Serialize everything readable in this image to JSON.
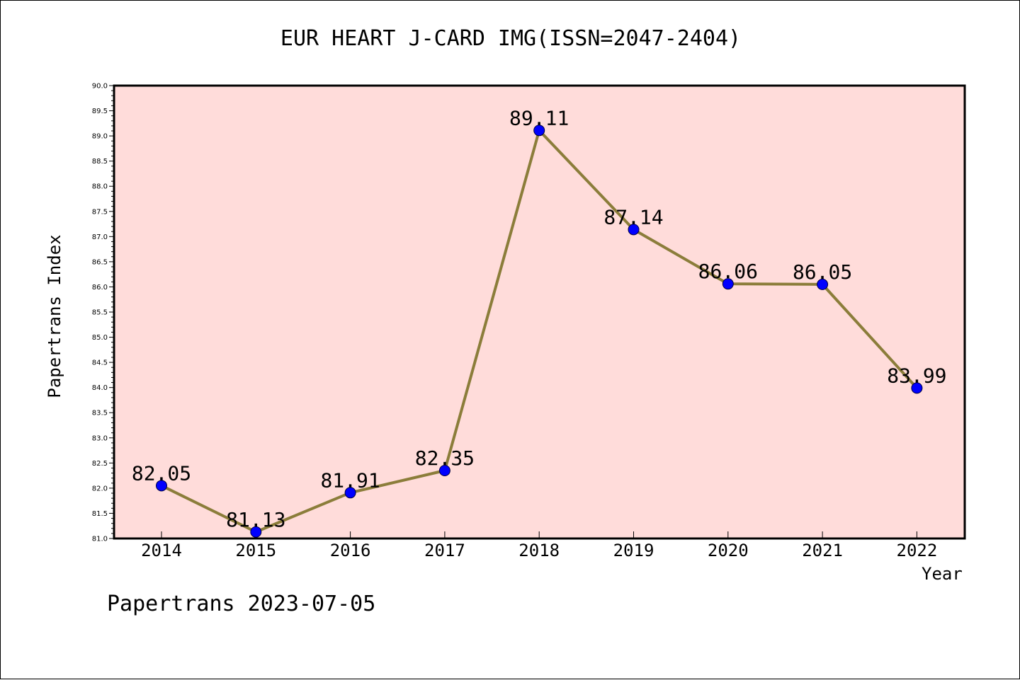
{
  "chart_data": {
    "type": "line",
    "title": "EUR HEART J-CARD IMG(ISSN=2047-2404)",
    "xlabel": "Year",
    "ylabel": "Papertrans Index",
    "categories": [
      "2014",
      "2015",
      "2016",
      "2017",
      "2018",
      "2019",
      "2020",
      "2021",
      "2022"
    ],
    "values": [
      82.05,
      81.13,
      81.91,
      82.35,
      89.11,
      87.14,
      86.06,
      86.05,
      83.99
    ],
    "data_labels": [
      "82.05",
      "81.13",
      "81.91",
      "82.35",
      "89.11",
      "87.14",
      "86.06",
      "86.05",
      "83.99"
    ],
    "ylim": [
      81.0,
      90.0
    ],
    "y_ticks": [
      "81.0",
      "81.5",
      "82.0",
      "82.5",
      "83.0",
      "83.5",
      "84.0",
      "84.5",
      "85.0",
      "85.5",
      "86.0",
      "86.5",
      "87.0",
      "87.5",
      "88.0",
      "88.5",
      "89.0",
      "89.5",
      "90.0"
    ],
    "grid": false,
    "colors": {
      "line": "#8B7D3A",
      "marker": "#0000FF",
      "plot_background": "#FFDCDA"
    }
  },
  "footer": "Papertrans 2023-07-05"
}
